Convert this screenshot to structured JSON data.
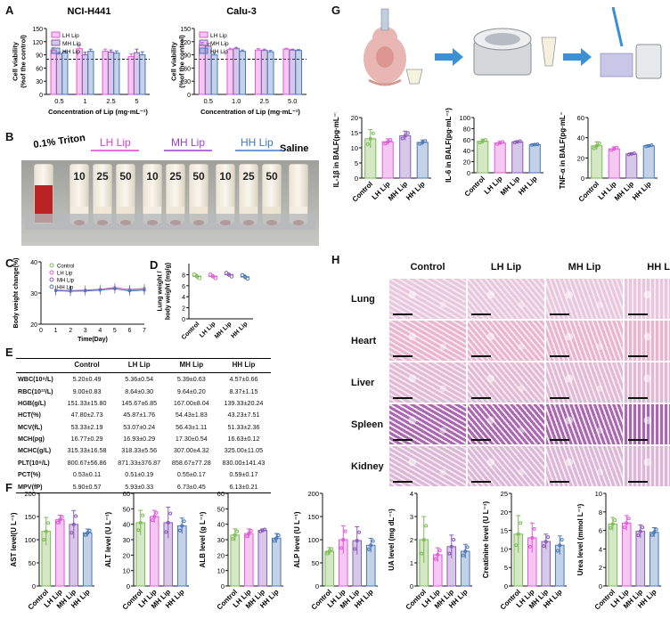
{
  "panel_labels": {
    "A": "A",
    "B": "B",
    "C": "C",
    "D": "D",
    "E": "E",
    "F": "F",
    "G": "G",
    "H": "H"
  },
  "legend_sets": {
    "lip": [
      "LH Lip",
      "MH Lip",
      "HH Lip"
    ],
    "all": [
      "Control",
      "LH Lip",
      "MH Lip",
      "HH Lip"
    ]
  },
  "colors": {
    "control": "#7dbb55",
    "lh": "#e05ad6",
    "mh": "#8a5bb8",
    "hh": "#4a78b8",
    "dashed": "#111111"
  },
  "panel_b": {
    "triton": "0.1% Triton",
    "lh": "LH Lip",
    "mh": "MH Lip",
    "hh": "HH Lip",
    "saline": "Saline",
    "conc": [
      "10",
      "25",
      "50",
      "10",
      "25",
      "50",
      "10",
      "25",
      "50"
    ]
  },
  "panel_e": {
    "headers": [
      "",
      "Control",
      "LH Lip",
      "MH Lip",
      "HH Lip"
    ],
    "rows": [
      [
        "WBC(10⁹/L)",
        "5.20±0.49",
        "5.36±0.54",
        "5.39±0.63",
        "4.57±0.66"
      ],
      [
        "RBC(10¹²/L)",
        "9.00±0.83",
        "8.64±0.30",
        "9.64±0.20",
        "8.37±1.15"
      ],
      [
        "HGB(g/L)",
        "151.33±15.80",
        "145.67±6.85",
        "167.00±8.04",
        "139.33±20.24"
      ],
      [
        "HCT(%)",
        "47.80±2.73",
        "45.87±1.76",
        "54.43±1.83",
        "43.23±7.51"
      ],
      [
        "MCV(fL)",
        "53.33±2.19",
        "53.07±0.24",
        "56.43±1.11",
        "51.33±2.36"
      ],
      [
        "MCH(pg)",
        "16.77±0.29",
        "16.93±0.29",
        "17.30±0.54",
        "16.63±0.12"
      ],
      [
        "MCHC(g/L)",
        "315.33±16.58",
        "318.33±5.56",
        "307.00±4.32",
        "325.00±11.05"
      ],
      [
        "PLT(10⁹/L)",
        "800.67±56.86",
        "871.33±376.87",
        "858.67±77.28",
        "830.00±141.43"
      ],
      [
        "PCT(%)",
        "0.53±0.11",
        "0.51±0.19",
        "0.55±0.17",
        "0.59±0.17"
      ],
      [
        "MPV(fP)",
        "5.90±0.57",
        "5.93±0.33",
        "6.73±0.45",
        "6.13±0.21"
      ]
    ]
  },
  "panel_h": {
    "cols": [
      "Control",
      "LH Lip",
      "MH Lip",
      "HH Lip"
    ],
    "rows": [
      "Lung",
      "Heart",
      "Liver",
      "Spleen",
      "Kidney"
    ],
    "tints": [
      "#e8c7dc",
      "#eab4cf",
      "#e2b9d3",
      "#a867b0",
      "#dcb6d6"
    ]
  },
  "chart_data": [
    {
      "id": "A1",
      "type": "bar",
      "title": "NCI-H441",
      "categories": [
        "0.5",
        "1",
        "2.5",
        "5"
      ],
      "xlabel": "Concentration of Lip (mg·mL⁻¹)",
      "ylabel": "Cell viability\n(%of the control)",
      "ylim": [
        0,
        150
      ],
      "yticks": [
        0,
        30,
        60,
        90,
        120,
        150
      ],
      "reference_line": 80,
      "legend_placement": "top-left",
      "series": [
        {
          "name": "LH Lip",
          "values": [
            101,
            104,
            98,
            86
          ],
          "err": [
            5,
            8,
            5,
            6
          ]
        },
        {
          "name": "MH Lip",
          "values": [
            92,
            90,
            96,
            95
          ],
          "err": [
            4,
            6,
            5,
            8
          ]
        },
        {
          "name": "HH Lip",
          "values": [
            95,
            98,
            94,
            90
          ],
          "err": [
            4,
            5,
            5,
            7
          ]
        }
      ]
    },
    {
      "id": "A2",
      "type": "bar",
      "title": "Calu-3",
      "categories": [
        "0.5",
        "1.0",
        "2.5",
        "5.0"
      ],
      "xlabel": "Concentration of Lip (mg·mL⁻¹)",
      "ylabel": "Cell viability\n(%of the control)",
      "ylim": [
        0,
        150
      ],
      "yticks": [
        0,
        30,
        60,
        90,
        120,
        150
      ],
      "reference_line": 80,
      "legend_placement": "top-left",
      "series": [
        {
          "name": "LH Lip",
          "values": [
            112,
            102,
            101,
            103
          ],
          "err": [
            6,
            3,
            3,
            2
          ]
        },
        {
          "name": "MH Lip",
          "values": [
            110,
            104,
            100,
            101
          ],
          "err": [
            6,
            3,
            3,
            2
          ]
        },
        {
          "name": "HH Lip",
          "values": [
            90,
            98,
            97,
            100
          ],
          "err": [
            4,
            3,
            3,
            2
          ]
        }
      ]
    },
    {
      "id": "C",
      "type": "line",
      "x": [
        1,
        2,
        3,
        4,
        5,
        6,
        7
      ],
      "xlabel": "Time(Day)",
      "ylabel": "Body weight change(%)",
      "xlim": [
        0,
        7
      ],
      "ylim": [
        20,
        40
      ],
      "yticks": [
        20,
        30,
        40
      ],
      "xticks": [
        0,
        1,
        2,
        3,
        4,
        5,
        6,
        7
      ],
      "legend_placement": "top-left",
      "series": [
        {
          "name": "Control",
          "values": [
            31,
            30.8,
            31,
            31.2,
            31.6,
            31.2,
            31.5
          ]
        },
        {
          "name": "LH Lip",
          "values": [
            30.9,
            30.7,
            30.9,
            31.2,
            31.8,
            31.1,
            31.3
          ]
        },
        {
          "name": "MH Lip",
          "values": [
            30.8,
            30.5,
            30.7,
            31.0,
            31.3,
            30.8,
            31.0
          ]
        },
        {
          "name": "HH Lip",
          "values": [
            30.7,
            30.6,
            30.6,
            30.9,
            31.4,
            30.6,
            30.9
          ]
        }
      ]
    },
    {
      "id": "D",
      "type": "scatter",
      "categories": [
        "Control",
        "LH Lip",
        "MH Lip",
        "HH Lip"
      ],
      "ylabel": "Lung weight /\nbody weight (mg/g)",
      "ylim": [
        0,
        10
      ],
      "yticks": [
        0,
        2,
        4,
        6,
        8
      ],
      "values": [
        7.7,
        7.7,
        8.0,
        7.6
      ],
      "err": [
        0.5,
        0.4,
        0.4,
        0.5
      ]
    },
    {
      "id": "G1",
      "type": "bar",
      "categories": [
        "Control",
        "LH Lip",
        "MH Lip",
        "HH Lip"
      ],
      "ylabel": "IL-1β in BALF(pg·mL⁻¹)",
      "ylim": [
        0,
        20
      ],
      "yticks": [
        0,
        5,
        10,
        15,
        20
      ],
      "values": [
        13,
        12,
        14,
        11.8
      ],
      "err": [
        3,
        1,
        1.5,
        0.8
      ]
    },
    {
      "id": "G2",
      "type": "bar",
      "categories": [
        "Control",
        "LH Lip",
        "MH Lip",
        "HH Lip"
      ],
      "ylabel": "IL-6 in BALF(pg·mL⁻¹)",
      "ylim": [
        0,
        100
      ],
      "yticks": [
        0,
        20,
        40,
        60,
        80,
        100
      ],
      "values": [
        57,
        54,
        56,
        51
      ],
      "err": [
        4,
        3,
        2,
        1
      ]
    },
    {
      "id": "G3",
      "type": "bar",
      "categories": [
        "Control",
        "LH Lip",
        "MH Lip",
        "HH Lip"
      ],
      "ylabel": "TNF-α in BALF(pg·mL⁻¹)",
      "ylim": [
        0,
        60
      ],
      "yticks": [
        0,
        20,
        40,
        60
      ],
      "values": [
        32,
        29,
        24,
        32
      ],
      "err": [
        4,
        2,
        1,
        1
      ]
    },
    {
      "id": "F1",
      "type": "bar",
      "categories": [
        "Control",
        "LH Lip",
        "MH Lip",
        "HH Lip"
      ],
      "ylabel": "AST level(U L⁻¹)",
      "ylim": [
        0,
        200
      ],
      "yticks": [
        0,
        50,
        100,
        150,
        200
      ],
      "values": [
        118,
        143,
        133,
        115
      ],
      "err": [
        30,
        10,
        30,
        8
      ]
    },
    {
      "id": "F2",
      "type": "bar",
      "categories": [
        "Control",
        "LH Lip",
        "MH Lip",
        "HH Lip"
      ],
      "ylabel": "ALT level (U L⁻¹)",
      "ylim": [
        0,
        60
      ],
      "yticks": [
        0,
        10,
        20,
        30,
        40,
        50,
        60
      ],
      "values": [
        41,
        45,
        41,
        39
      ],
      "err": [
        8,
        4,
        10,
        5
      ]
    },
    {
      "id": "F3",
      "type": "bar",
      "categories": [
        "Control",
        "LH Lip",
        "MH Lip",
        "HH Lip"
      ],
      "ylabel": "ALB level (g L⁻¹)",
      "ylim": [
        0,
        60
      ],
      "yticks": [
        0,
        10,
        20,
        30,
        40,
        50,
        60
      ],
      "values": [
        33,
        34,
        36,
        31
      ],
      "err": [
        4,
        3,
        1,
        3
      ]
    },
    {
      "id": "F4",
      "type": "bar",
      "categories": [
        "Control",
        "LH Lip",
        "MH Lip",
        "HH Lip"
      ],
      "ylabel": "ALP level (U L⁻¹)",
      "ylim": [
        0,
        200
      ],
      "yticks": [
        0,
        50,
        100,
        150,
        200
      ],
      "values": [
        75,
        100,
        98,
        88
      ],
      "err": [
        8,
        30,
        30,
        15
      ]
    },
    {
      "id": "F5",
      "type": "bar",
      "categories": [
        "Control",
        "LH Lip",
        "MH Lip",
        "HH Lip"
      ],
      "ylabel": "UA level (mg dL⁻¹)",
      "ylim": [
        0,
        4
      ],
      "yticks": [
        0,
        1,
        2,
        3,
        4
      ],
      "values": [
        2.0,
        1.35,
        1.7,
        1.5
      ],
      "err": [
        1.0,
        0.3,
        0.5,
        0.3
      ]
    },
    {
      "id": "F6",
      "type": "bar",
      "categories": [
        "Control",
        "LH Lip",
        "MH Lip",
        "HH Lip"
      ],
      "ylabel": "Creatinine level (U L⁻¹)",
      "ylim": [
        0,
        25
      ],
      "yticks": [
        0,
        5,
        10,
        15,
        20,
        25
      ],
      "values": [
        14,
        13,
        12,
        11
      ],
      "err": [
        5,
        4,
        2,
        2.5
      ]
    },
    {
      "id": "F7",
      "type": "bar",
      "categories": [
        "Control",
        "LH Lip",
        "MH Lip",
        "HH Lip"
      ],
      "ylabel": "Urea level (mmol L⁻¹)",
      "ylim": [
        0,
        10
      ],
      "yticks": [
        0,
        2,
        4,
        6,
        8,
        10
      ],
      "values": [
        6.7,
        6.8,
        5.9,
        5.8
      ],
      "err": [
        0.7,
        0.8,
        0.7,
        0.5
      ]
    }
  ]
}
